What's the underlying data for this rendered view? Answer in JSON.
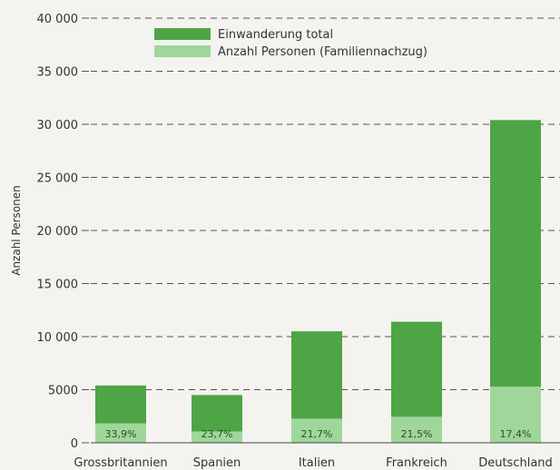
{
  "chart_data": {
    "type": "bar",
    "stacked": "overlay",
    "ylabel": "Anzahl Personen",
    "xlabel": "",
    "ylim": [
      0,
      40000
    ],
    "yticks": [
      "0",
      "5000",
      "10 000",
      "15 000",
      "20 000",
      "25 000",
      "30 000",
      "35 000",
      "40 000"
    ],
    "ytick_values": [
      0,
      5000,
      10000,
      15000,
      20000,
      25000,
      30000,
      35000,
      40000
    ],
    "grid": "dashed-horizontal",
    "legend": "top-center",
    "categories": [
      "Grossbritannien",
      "Spanien",
      "Italien",
      "Frankreich",
      "Deutschland"
    ],
    "series": [
      {
        "name": "Einwanderung total",
        "color": "#4ea545",
        "values": [
          5400,
          4500,
          10500,
          11400,
          30400
        ]
      },
      {
        "name": "Anzahl Personen (Familiennachzug)",
        "color": "#9fd79a",
        "values": [
          1830,
          1070,
          2280,
          2450,
          5290
        ]
      }
    ],
    "bar_labels": [
      "33,9%",
      "23,7%",
      "21,7%",
      "21,5%",
      "17,4%"
    ]
  }
}
